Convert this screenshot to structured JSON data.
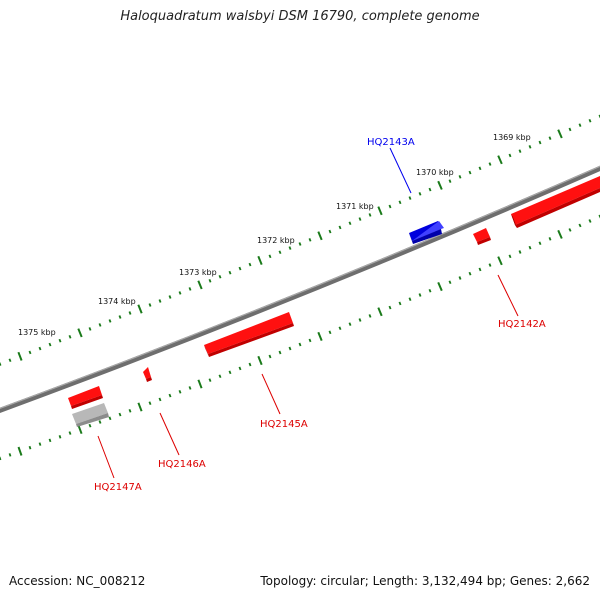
{
  "title": "Haloquadratum walsbyi DSM 16790, complete genome",
  "footer": {
    "accession": "Accession: NC_008212",
    "summary": "Topology: circular; Length: 3,132,494 bp; Genes: 2,662"
  },
  "colors": {
    "forward": "#ff0000",
    "reverse": "#0000ee",
    "pseudo": "#b0b0b0",
    "ticks": "#1a7a1a",
    "backbone": "#777777"
  },
  "kbp_ticks": [
    {
      "kb": 1369,
      "label": "1369 kbp"
    },
    {
      "kb": 1370,
      "label": "1370 kbp"
    },
    {
      "kb": 1371,
      "label": "1371 kbp"
    },
    {
      "kb": 1372,
      "label": "1372 kbp"
    },
    {
      "kb": 1373,
      "label": "1373 kbp"
    },
    {
      "kb": 1374,
      "label": "1374 kbp"
    },
    {
      "kb": 1375,
      "label": "1375 kbp"
    }
  ],
  "genes": [
    {
      "label": "HQ2143A",
      "strand": "reverse"
    },
    {
      "label": "HQ2142A",
      "strand": "forward"
    },
    {
      "label": "HQ2145A",
      "strand": "forward"
    },
    {
      "label": "HQ2146A",
      "strand": "forward"
    },
    {
      "label": "HQ2147A",
      "strand": "forward"
    }
  ]
}
